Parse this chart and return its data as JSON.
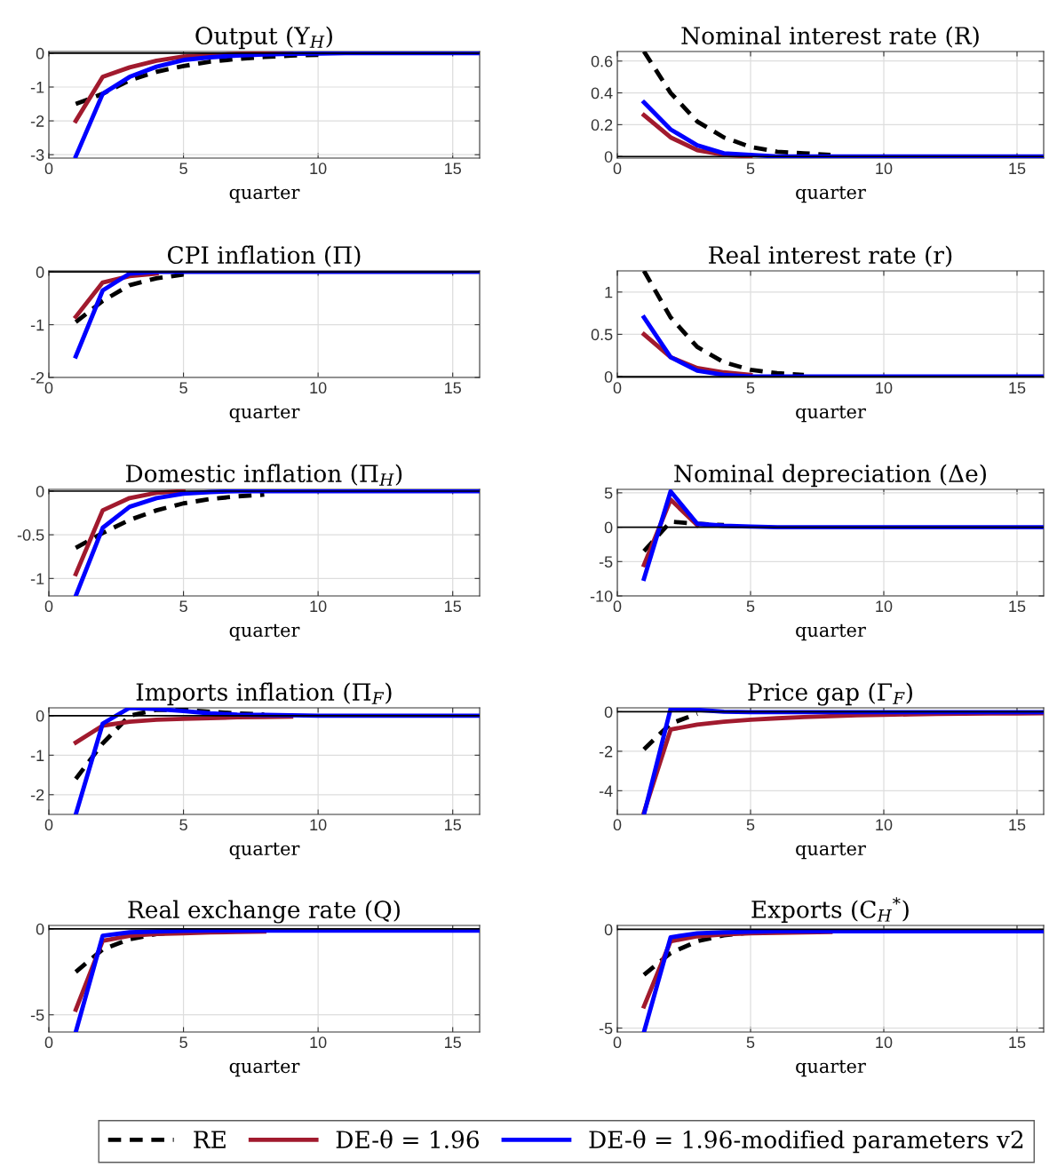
{
  "chart_data": [
    {
      "type": "line",
      "title": "Output (Y$_{H}$)",
      "xlabel": "quarter",
      "xlim": [
        0,
        16
      ],
      "xticks": [
        0,
        5,
        10,
        15
      ],
      "ylim": [
        -3.1,
        0.05
      ],
      "yticks": [
        -3,
        -2,
        -1,
        0
      ],
      "grid": true,
      "ref_lines": [
        {
          "axis": "y",
          "value": 0,
          "color": "#000000"
        }
      ],
      "x": [
        1,
        2,
        3,
        4,
        5,
        6,
        7,
        8,
        9,
        10,
        11,
        12,
        13,
        14,
        15,
        16
      ],
      "series": [
        {
          "color": "#000000",
          "line_style": "dashed",
          "values": [
            -1.5,
            -1.2,
            -0.8,
            -0.55,
            -0.38,
            -0.25,
            -0.17,
            -0.11,
            -0.07,
            -0.05,
            null,
            null,
            null,
            null,
            null,
            null
          ]
        },
        {
          "color": "#a11a2e",
          "line_style": "solid",
          "values": [
            -2.0,
            -0.7,
            -0.42,
            -0.22,
            -0.1,
            -0.05,
            -0.02,
            -0.01,
            0,
            null,
            null,
            null,
            null,
            null,
            null,
            null
          ]
        },
        {
          "color": "#0000ff",
          "line_style": "solid",
          "values": [
            -3.05,
            -1.2,
            -0.7,
            -0.4,
            -0.2,
            -0.12,
            -0.07,
            -0.04,
            -0.02,
            -0.01,
            0,
            0,
            0,
            0,
            0,
            0
          ]
        }
      ]
    },
    {
      "type": "line",
      "title": "Nominal interest rate (R)",
      "xlabel": "quarter",
      "xlim": [
        0,
        16
      ],
      "xticks": [
        0,
        5,
        10,
        15
      ],
      "ylim": [
        -0.01,
        0.66
      ],
      "yticks": [
        0,
        0.2,
        0.4,
        0.6
      ],
      "grid": true,
      "ref_lines": [
        {
          "axis": "y",
          "value": 0,
          "color": "#000000"
        }
      ],
      "x": [
        1,
        2,
        3,
        4,
        5,
        6,
        7,
        8,
        9,
        10,
        11,
        12,
        13,
        14,
        15,
        16
      ],
      "series": [
        {
          "color": "#000000",
          "line_style": "dashed",
          "values": [
            0.66,
            0.4,
            0.22,
            0.12,
            0.06,
            0.03,
            0.02,
            0.01,
            null,
            null,
            null,
            null,
            null,
            null,
            null,
            null
          ]
        },
        {
          "color": "#a11a2e",
          "line_style": "solid",
          "values": [
            0.26,
            0.12,
            0.04,
            0.01,
            0,
            null,
            null,
            null,
            null,
            null,
            null,
            null,
            null,
            null,
            null,
            null
          ]
        },
        {
          "color": "#0000ff",
          "line_style": "solid",
          "values": [
            0.34,
            0.17,
            0.07,
            0.02,
            0.01,
            0,
            0,
            0,
            0,
            0,
            0,
            0,
            0,
            0,
            0,
            0
          ]
        }
      ]
    },
    {
      "type": "line",
      "title": "CPI inflation (Π)",
      "xlabel": "quarter",
      "xlim": [
        0,
        16
      ],
      "xticks": [
        0,
        5,
        10,
        15
      ],
      "ylim": [
        -2,
        0.02
      ],
      "yticks": [
        -2,
        -1,
        0
      ],
      "grid": true,
      "ref_lines": [
        {
          "axis": "y",
          "value": 0,
          "color": "#000000"
        }
      ],
      "x": [
        1,
        2,
        3,
        4,
        5,
        6,
        7,
        8,
        9,
        10,
        11,
        12,
        13,
        14,
        15,
        16
      ],
      "series": [
        {
          "color": "#000000",
          "line_style": "dashed",
          "values": [
            -0.95,
            -0.55,
            -0.25,
            -0.12,
            -0.05,
            null,
            null,
            null,
            null,
            null,
            null,
            null,
            null,
            null,
            null,
            null
          ]
        },
        {
          "color": "#a11a2e",
          "line_style": "solid",
          "values": [
            -0.85,
            -0.2,
            -0.08,
            -0.03,
            null,
            null,
            null,
            null,
            null,
            null,
            null,
            null,
            null,
            null,
            null,
            null
          ]
        },
        {
          "color": "#0000ff",
          "line_style": "solid",
          "values": [
            -1.6,
            -0.35,
            -0.03,
            0,
            0,
            0,
            0,
            0,
            0,
            0,
            0,
            0,
            0,
            0,
            0,
            0
          ]
        }
      ]
    },
    {
      "type": "line",
      "title": "Real interest rate (r)",
      "xlabel": "quarter",
      "xlim": [
        0,
        16
      ],
      "xticks": [
        0,
        5,
        10,
        15
      ],
      "ylim": [
        -0.01,
        1.25
      ],
      "yticks": [
        0,
        0.5,
        1
      ],
      "grid": true,
      "ref_lines": [
        {
          "axis": "y",
          "value": 0,
          "color": "#000000"
        }
      ],
      "x": [
        1,
        2,
        3,
        4,
        5,
        6,
        7,
        8,
        9,
        10,
        11,
        12,
        13,
        14,
        15,
        16
      ],
      "series": [
        {
          "color": "#000000",
          "line_style": "dashed",
          "values": [
            1.25,
            0.7,
            0.35,
            0.17,
            0.08,
            0.04,
            0.02,
            null,
            null,
            null,
            null,
            null,
            null,
            null,
            null,
            null
          ]
        },
        {
          "color": "#a11a2e",
          "line_style": "solid",
          "values": [
            0.5,
            0.23,
            0.1,
            0.05,
            0.02,
            null,
            null,
            null,
            null,
            null,
            null,
            null,
            null,
            null,
            null,
            null
          ]
        },
        {
          "color": "#0000ff",
          "line_style": "solid",
          "values": [
            0.7,
            0.23,
            0.07,
            0.02,
            0,
            0,
            0,
            0,
            0,
            0,
            0,
            0,
            0,
            0,
            0,
            0
          ]
        }
      ]
    },
    {
      "type": "line",
      "title": "Domestic inflation (Π$_{H}$)",
      "xlabel": "quarter",
      "xlim": [
        0,
        16
      ],
      "xticks": [
        0,
        5,
        10,
        15
      ],
      "ylim": [
        -1.2,
        0.02
      ],
      "yticks": [
        -1,
        -0.5,
        0
      ],
      "grid": true,
      "ref_lines": [
        {
          "axis": "y",
          "value": 0,
          "color": "#000000"
        }
      ],
      "x": [
        1,
        2,
        3,
        4,
        5,
        6,
        7,
        8,
        9,
        10,
        11,
        12,
        13,
        14,
        15,
        16
      ],
      "series": [
        {
          "color": "#000000",
          "line_style": "dashed",
          "values": [
            -0.65,
            -0.48,
            -0.33,
            -0.22,
            -0.14,
            -0.09,
            -0.06,
            -0.04,
            null,
            null,
            null,
            null,
            null,
            null,
            null,
            null
          ]
        },
        {
          "color": "#a11a2e",
          "line_style": "solid",
          "values": [
            -0.95,
            -0.22,
            -0.08,
            -0.02,
            0,
            null,
            null,
            null,
            null,
            null,
            null,
            null,
            null,
            null,
            null,
            null
          ]
        },
        {
          "color": "#0000ff",
          "line_style": "solid",
          "values": [
            -1.2,
            -0.42,
            -0.18,
            -0.08,
            -0.03,
            -0.01,
            0,
            0,
            0,
            0,
            0,
            0,
            0,
            0,
            0,
            0
          ]
        }
      ]
    },
    {
      "type": "line",
      "title": "Nominal depreciation (Δe)",
      "xlabel": "quarter",
      "xlim": [
        0,
        16
      ],
      "xticks": [
        0,
        5,
        10,
        15
      ],
      "ylim": [
        -10,
        5.5
      ],
      "yticks": [
        -10,
        -5,
        0,
        5
      ],
      "grid": true,
      "ref_lines": [
        {
          "axis": "y",
          "value": 0,
          "color": "#000000"
        }
      ],
      "x": [
        1,
        2,
        3,
        4,
        5,
        6,
        7,
        8,
        9,
        10,
        11,
        12,
        13,
        14,
        15,
        16
      ],
      "series": [
        {
          "color": "#000000",
          "line_style": "dashed",
          "values": [
            -3.5,
            0.8,
            0.5,
            0.3,
            null,
            null,
            null,
            null,
            null,
            null,
            null,
            null,
            null,
            null,
            null,
            null
          ]
        },
        {
          "color": "#a11a2e",
          "line_style": "solid",
          "values": [
            -5.5,
            4,
            0.3,
            null,
            null,
            null,
            null,
            null,
            null,
            null,
            null,
            null,
            null,
            null,
            null,
            null
          ]
        },
        {
          "color": "#0000ff",
          "line_style": "solid",
          "values": [
            -7.5,
            5.2,
            0.5,
            0.2,
            0.1,
            0,
            0,
            0,
            0,
            0,
            0,
            0,
            0,
            0,
            0,
            0
          ]
        }
      ]
    },
    {
      "type": "line",
      "title": "Imports inflation (Π$_{F}$)",
      "xlabel": "quarter",
      "xlim": [
        0,
        16
      ],
      "xticks": [
        0,
        5,
        10,
        15
      ],
      "ylim": [
        -2.5,
        0.2
      ],
      "yticks": [
        -2,
        -1,
        0
      ],
      "grid": true,
      "ref_lines": [
        {
          "axis": "y",
          "value": 0,
          "color": "#000000"
        }
      ],
      "x": [
        1,
        2,
        3,
        4,
        5,
        6,
        7,
        8,
        9,
        10,
        11,
        12,
        13,
        14,
        15,
        16
      ],
      "series": [
        {
          "color": "#000000",
          "line_style": "dashed",
          "values": [
            -1.6,
            -0.7,
            0,
            0.15,
            0.15,
            0.1,
            0.06,
            0.03,
            null,
            null,
            null,
            null,
            null,
            null,
            null,
            null
          ]
        },
        {
          "color": "#a11a2e",
          "line_style": "solid",
          "values": [
            -0.68,
            -0.25,
            -0.15,
            -0.1,
            -0.08,
            -0.06,
            -0.04,
            -0.03,
            -0.02,
            null,
            null,
            null,
            null,
            null,
            null,
            null
          ]
        },
        {
          "color": "#0000ff",
          "line_style": "solid",
          "values": [
            -2.5,
            -0.2,
            0.2,
            0.17,
            0.12,
            0.06,
            0.03,
            0.02,
            0.01,
            0,
            0,
            0,
            0,
            0,
            0,
            0
          ]
        }
      ]
    },
    {
      "type": "line",
      "title": "Price gap (Γ$_{F}$)",
      "xlabel": "quarter",
      "xlim": [
        0,
        16
      ],
      "xticks": [
        0,
        5,
        10,
        15
      ],
      "ylim": [
        -5.2,
        0.2
      ],
      "yticks": [
        -4,
        -2,
        0
      ],
      "grid": true,
      "ref_lines": [
        {
          "axis": "y",
          "value": 0,
          "color": "#000000"
        }
      ],
      "x": [
        1,
        2,
        3,
        4,
        5,
        6,
        7,
        8,
        9,
        10,
        11,
        12,
        13,
        14,
        15,
        16
      ],
      "series": [
        {
          "color": "#000000",
          "line_style": "dashed",
          "values": [
            -1.9,
            -0.6,
            -0.1,
            null,
            null,
            null,
            null,
            null,
            null,
            null,
            null,
            null,
            null,
            null,
            null,
            null
          ]
        },
        {
          "color": "#a11a2e",
          "line_style": "solid",
          "values": [
            -5.1,
            -0.9,
            -0.65,
            -0.5,
            -0.4,
            -0.33,
            -0.27,
            -0.22,
            -0.18,
            -0.15,
            -0.13,
            -0.11,
            -0.1,
            -0.09,
            -0.08,
            -0.07
          ]
        },
        {
          "color": "#0000ff",
          "line_style": "solid",
          "values": [
            -5.2,
            0.15,
            0.1,
            0,
            -0.02,
            -0.02,
            -0.02,
            -0.02,
            -0.02,
            -0.02,
            -0.02,
            -0.02,
            -0.02,
            -0.02,
            -0.02,
            -0.02
          ]
        }
      ]
    },
    {
      "type": "line",
      "title": "Real exchange rate (Q)",
      "xlabel": "quarter",
      "xlim": [
        0,
        16
      ],
      "xticks": [
        0,
        5,
        10,
        15
      ],
      "ylim": [
        -6,
        0.2
      ],
      "yticks": [
        -5,
        0
      ],
      "grid": true,
      "ref_lines": [
        {
          "axis": "y",
          "value": 0,
          "color": "#000000"
        }
      ],
      "x": [
        1,
        2,
        3,
        4,
        5,
        6,
        7,
        8,
        9,
        10,
        11,
        12,
        13,
        14,
        15,
        16
      ],
      "series": [
        {
          "color": "#000000",
          "line_style": "dashed",
          "values": [
            -2.5,
            -1.2,
            -0.6,
            -0.3,
            -0.15,
            null,
            null,
            null,
            null,
            null,
            null,
            null,
            null,
            null,
            null,
            null
          ]
        },
        {
          "color": "#a11a2e",
          "line_style": "solid",
          "values": [
            -4.7,
            -0.7,
            -0.4,
            -0.3,
            -0.25,
            -0.2,
            -0.18,
            -0.15,
            null,
            null,
            null,
            null,
            null,
            null,
            null,
            null
          ]
        },
        {
          "color": "#0000ff",
          "line_style": "solid",
          "values": [
            -6,
            -0.4,
            -0.2,
            -0.15,
            -0.12,
            -0.1,
            -0.1,
            -0.1,
            -0.1,
            -0.1,
            -0.1,
            -0.1,
            -0.1,
            -0.1,
            -0.1,
            -0.1
          ]
        }
      ]
    },
    {
      "type": "line",
      "title": "Exports (C$_{H}$$^{*}$)",
      "xlabel": "quarter",
      "xlim": [
        0,
        16
      ],
      "xticks": [
        0,
        5,
        10,
        15
      ],
      "ylim": [
        -5.2,
        0.2
      ],
      "yticks": [
        -5,
        0
      ],
      "grid": true,
      "legend": "bottom",
      "ref_lines": [
        {
          "axis": "y",
          "value": 0,
          "color": "#000000"
        }
      ],
      "x": [
        1,
        2,
        3,
        4,
        5,
        6,
        7,
        8,
        9,
        10,
        11,
        12,
        13,
        14,
        15,
        16
      ],
      "series": [
        {
          "name": "RE",
          "color": "#000000",
          "line_style": "dashed",
          "values": [
            -2.3,
            -1.2,
            -0.6,
            -0.3,
            -0.15,
            null,
            null,
            null,
            null,
            null,
            null,
            null,
            null,
            null,
            null,
            null
          ]
        },
        {
          "name": "DE-θ = 1.96",
          "color": "#a11a2e",
          "line_style": "solid",
          "values": [
            -3.9,
            -0.6,
            -0.35,
            -0.25,
            -0.2,
            -0.18,
            -0.15,
            -0.13,
            null,
            null,
            null,
            null,
            null,
            null,
            null,
            null
          ]
        },
        {
          "name": "DE-θ = 1.96-modified parameters v2",
          "color": "#0000ff",
          "line_style": "solid",
          "values": [
            -5.2,
            -0.4,
            -0.2,
            -0.15,
            -0.12,
            -0.1,
            -0.1,
            -0.1,
            -0.1,
            -0.1,
            -0.1,
            -0.1,
            -0.1,
            -0.1,
            -0.1,
            -0.1
          ]
        }
      ]
    }
  ]
}
